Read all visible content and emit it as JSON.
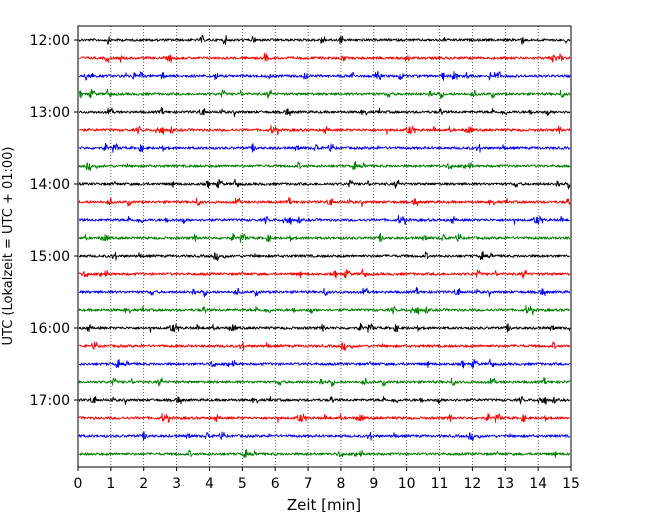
{
  "chart_data": {
    "type": "line",
    "title": "",
    "xlabel": "Zeit  [min]",
    "ylabel": "UTC (Lokalzeit = UTC + 01:00)",
    "xlim": [
      0,
      15
    ],
    "xticks": [
      0,
      1,
      2,
      3,
      4,
      5,
      6,
      7,
      8,
      9,
      10,
      11,
      12,
      13,
      14,
      15
    ],
    "ytick_labels": [
      "12:00",
      "13:00",
      "14:00",
      "15:00",
      "16:00",
      "17:00"
    ],
    "grid": "vertical dotted lines at each minute",
    "minutes_per_trace": 15,
    "trace_colors": [
      "#000000",
      "#ff0000",
      "#0000ff",
      "#008000"
    ],
    "traces": [
      {
        "start": "12:00",
        "color": "#000000"
      },
      {
        "start": "12:15",
        "color": "#ff0000"
      },
      {
        "start": "12:30",
        "color": "#0000ff"
      },
      {
        "start": "12:45",
        "color": "#008000"
      },
      {
        "start": "13:00",
        "color": "#000000"
      },
      {
        "start": "13:15",
        "color": "#ff0000"
      },
      {
        "start": "13:30",
        "color": "#0000ff"
      },
      {
        "start": "13:45",
        "color": "#008000"
      },
      {
        "start": "14:00",
        "color": "#000000"
      },
      {
        "start": "14:15",
        "color": "#ff0000"
      },
      {
        "start": "14:30",
        "color": "#0000ff"
      },
      {
        "start": "14:45",
        "color": "#008000"
      },
      {
        "start": "15:00",
        "color": "#000000"
      },
      {
        "start": "15:15",
        "color": "#ff0000"
      },
      {
        "start": "15:30",
        "color": "#0000ff"
      },
      {
        "start": "15:45",
        "color": "#008000"
      },
      {
        "start": "16:00",
        "color": "#000000"
      },
      {
        "start": "16:15",
        "color": "#ff0000"
      },
      {
        "start": "16:30",
        "color": "#0000ff"
      },
      {
        "start": "16:45",
        "color": "#008000"
      },
      {
        "start": "17:00",
        "color": "#000000"
      },
      {
        "start": "17:15",
        "color": "#ff0000"
      },
      {
        "start": "17:30",
        "color": "#0000ff"
      },
      {
        "start": "17:45",
        "color": "#008000"
      }
    ]
  }
}
